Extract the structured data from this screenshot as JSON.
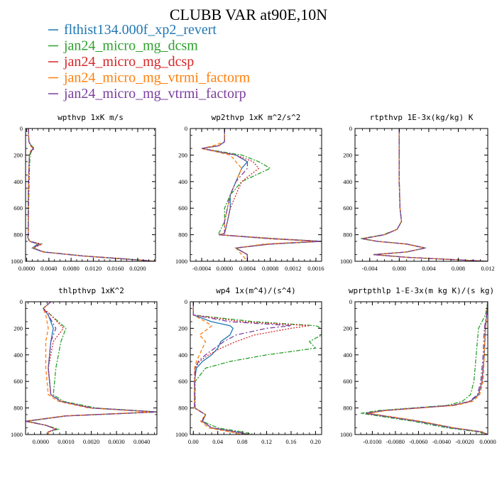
{
  "title": "CLUBB VAR at90E,10N",
  "legend": [
    {
      "label": "flthist134.000f_xp2_revert",
      "color": "#1f77b4"
    },
    {
      "label": "jan24_micro_mg_dcsm",
      "color": "#2ca02c"
    },
    {
      "label": "jan24_micro_mg_dcsp",
      "color": "#d62728"
    },
    {
      "label": "jan24_micro_mg_vtrmi_factorm",
      "color": "#ff7f0e"
    },
    {
      "label": "jan24_micro_mg_vtrmi_factorp",
      "color": "#7b3f9e"
    }
  ],
  "chart_data": [
    {
      "type": "line",
      "title": "wpthvp 1xK m/s",
      "xlim": [
        -0.0002,
        0.0232
      ],
      "xticks": [
        "0.0000",
        "0.0040",
        "0.0080",
        "0.0120",
        "0.0160",
        "0.0200"
      ],
      "xtick_values": [
        0,
        0.004,
        0.008,
        0.012,
        0.016,
        0.02
      ],
      "ylim": [
        1000,
        0
      ],
      "yticks": [
        "0",
        "200",
        "400",
        "600",
        "800",
        "1000"
      ],
      "ytick_values": [
        0,
        200,
        400,
        600,
        800,
        1000
      ],
      "y": [
        0,
        100,
        130,
        150,
        170,
        200,
        300,
        500,
        700,
        800,
        820,
        850,
        870,
        900,
        930,
        960,
        990,
        1000
      ],
      "series": [
        {
          "values": [
            0.0003,
            0.0004,
            0.0008,
            0.0012,
            0.0008,
            0.0005,
            0.0004,
            0.0003,
            0.0003,
            0.0003,
            0.0002,
            0.0005,
            0.002,
            0.001,
            0.003,
            0.01,
            0.02,
            0.0232
          ]
        },
        {
          "values": [
            0.0003,
            0.0004,
            0.0009,
            0.0014,
            0.0009,
            0.0006,
            0.0005,
            0.0004,
            0.0003,
            0.0003,
            0.0002,
            0.0006,
            0.0025,
            0.0012,
            0.0032,
            0.0105,
            0.0205,
            0.0232
          ]
        },
        {
          "values": [
            0.0003,
            0.0004,
            0.0008,
            0.0013,
            0.0008,
            0.0005,
            0.0004,
            0.0003,
            0.0003,
            0.0003,
            0.0002,
            0.0006,
            0.0028,
            0.0012,
            0.0031,
            0.0102,
            0.0202,
            0.0232
          ]
        },
        {
          "values": [
            0.0003,
            0.0004,
            0.0007,
            0.0011,
            0.0007,
            0.0005,
            0.0004,
            0.0003,
            0.0003,
            0.0003,
            0.0002,
            0.0005,
            0.0022,
            0.0011,
            0.003,
            0.01,
            0.02,
            0.0232
          ]
        },
        {
          "values": [
            0.0003,
            0.0004,
            0.0008,
            0.0012,
            0.0008,
            0.0005,
            0.0004,
            0.0003,
            0.0003,
            0.0003,
            0.0002,
            0.0005,
            0.0024,
            0.0011,
            0.003,
            0.0101,
            0.0201,
            0.0232
          ]
        }
      ]
    },
    {
      "type": "line",
      "title": "wp2thvp 1xK m^2/s^2",
      "xlim": [
        -0.0006,
        0.0017
      ],
      "xticks": [
        "-0.0004",
        "0.0000",
        "0.0004",
        "0.0008",
        "0.0012",
        "0.0016"
      ],
      "xtick_values": [
        -0.0004,
        0,
        0.0004,
        0.0008,
        0.0012,
        0.0016
      ],
      "ylim": [
        1000,
        0
      ],
      "yticks": [
        "0",
        "200",
        "400",
        "600",
        "800",
        "1000"
      ],
      "ytick_values": [
        0,
        200,
        400,
        600,
        800,
        1000
      ],
      "y": [
        0,
        100,
        130,
        150,
        200,
        250,
        300,
        400,
        500,
        600,
        700,
        790,
        800,
        830,
        850,
        870,
        900,
        950,
        1000
      ],
      "series": [
        {
          "values": [
            0.0,
            0.0,
            -0.0001,
            -0.0004,
            0.0002,
            0.0004,
            0.0003,
            0.0002,
            0.0001,
            0.0001,
            5e-05,
            0.0,
            -0.0001,
            0.0008,
            0.0017,
            0.0008,
            0.0002,
            0.0004,
            0.0004
          ]
        },
        {
          "values": [
            0.0,
            0.0,
            -0.0001,
            -0.0004,
            0.0003,
            0.0006,
            0.0008,
            0.0003,
            0.0001,
            0.0,
            0.0,
            -0.0001,
            -0.0001,
            0.0009,
            0.0017,
            0.0008,
            0.0002,
            0.0004,
            0.0004
          ]
        },
        {
          "values": [
            0.0,
            0.0,
            -0.0001,
            -0.0004,
            0.0002,
            0.0005,
            0.0006,
            0.0003,
            0.0002,
            0.0001,
            5e-05,
            0.0,
            -0.0001,
            0.0009,
            0.0017,
            0.0008,
            0.0002,
            0.0004,
            0.0004
          ]
        },
        {
          "values": [
            0.0,
            0.0,
            -0.0002,
            -0.0004,
            0.0001,
            0.0002,
            0.0003,
            0.0002,
            0.0001,
            5e-05,
            0.0,
            0.0,
            -0.0001,
            0.0008,
            0.0016,
            0.0007,
            0.0002,
            0.0003,
            0.0004
          ]
        },
        {
          "values": [
            0.0,
            0.0,
            -0.0001,
            -0.0004,
            0.0002,
            0.0004,
            0.0004,
            0.0002,
            0.0001,
            5e-05,
            0.0,
            0.0,
            -0.0001,
            0.0008,
            0.0017,
            0.0008,
            0.0002,
            0.0004,
            0.0004
          ]
        }
      ]
    },
    {
      "type": "line",
      "title": "rtpthvp 1E-3x(kg/kg) K",
      "xlim": [
        -0.006,
        0.012
      ],
      "xticks": [
        "-0.004",
        "0.000",
        "0.004",
        "0.008",
        "0.012"
      ],
      "xtick_values": [
        -0.004,
        0,
        0.004,
        0.008,
        0.012
      ],
      "ylim": [
        1000,
        0
      ],
      "yticks": [
        "0",
        "200",
        "400",
        "600",
        "800",
        "1000"
      ],
      "ytick_values": [
        0,
        200,
        400,
        600,
        800,
        1000
      ],
      "y": [
        0,
        200,
        400,
        600,
        700,
        760,
        800,
        830,
        850,
        870,
        900,
        930,
        950,
        970,
        1000
      ],
      "series": [
        {
          "values": [
            0.0,
            0.0,
            0.0,
            0.0001,
            0.0003,
            -0.0003,
            -0.002,
            -0.005,
            -0.003,
            0.001,
            0.0035,
            0.001,
            -0.0035,
            0.001,
            0.012
          ]
        },
        {
          "values": [
            0.0,
            0.0,
            0.0,
            0.0001,
            0.0003,
            -0.0003,
            -0.0022,
            -0.0052,
            -0.003,
            0.001,
            0.0035,
            0.001,
            -0.0035,
            0.001,
            0.012
          ]
        },
        {
          "values": [
            0.0,
            0.0,
            0.0,
            0.0001,
            0.0003,
            -0.0003,
            -0.002,
            -0.005,
            -0.003,
            0.001,
            0.0036,
            0.001,
            -0.0035,
            0.001,
            0.012
          ]
        },
        {
          "values": [
            0.0,
            0.0,
            0.0,
            0.0001,
            0.0003,
            -0.0003,
            -0.0021,
            -0.0048,
            -0.003,
            0.0008,
            0.0034,
            0.001,
            -0.0034,
            0.001,
            0.012
          ]
        },
        {
          "values": [
            0.0,
            0.0,
            0.0,
            0.0001,
            0.0003,
            -0.0003,
            -0.002,
            -0.005,
            -0.003,
            0.001,
            0.0035,
            0.001,
            -0.0035,
            0.001,
            0.012
          ]
        }
      ]
    },
    {
      "type": "line",
      "title": "thlpthvp 1xK^2",
      "xlim": [
        -0.0006,
        0.0046
      ],
      "xticks": [
        "0.0000",
        "0.0010",
        "0.0020",
        "0.0030",
        "0.0040"
      ],
      "xtick_values": [
        0,
        0.001,
        0.002,
        0.003,
        0.004
      ],
      "ylim": [
        1000,
        0
      ],
      "yticks": [
        "0",
        "200",
        "400",
        "600",
        "800",
        "1000"
      ],
      "ytick_values": [
        0,
        200,
        400,
        600,
        800,
        1000
      ],
      "y": [
        0,
        50,
        100,
        200,
        300,
        500,
        700,
        750,
        800,
        830,
        860,
        900,
        930,
        960,
        980,
        1000
      ],
      "series": [
        {
          "values": [
            0.0004,
            0.0001,
            0.0003,
            0.0005,
            0.0004,
            0.0003,
            0.0004,
            0.0008,
            0.002,
            0.0046,
            0.001,
            -0.0006,
            0.0002,
            0.0006,
            0.0003,
            0.0003
          ]
        },
        {
          "values": [
            0.0004,
            0.0001,
            0.0004,
            0.001,
            0.0008,
            0.0006,
            0.0005,
            0.0009,
            0.0022,
            0.0046,
            0.001,
            -0.0005,
            0.0002,
            0.0007,
            0.0003,
            0.0003
          ]
        },
        {
          "values": [
            0.0004,
            0.0001,
            0.0004,
            0.0009,
            0.0005,
            0.0003,
            0.0004,
            0.0008,
            0.002,
            0.0046,
            0.001,
            -0.0006,
            0.0002,
            0.0006,
            0.0003,
            0.0003
          ]
        },
        {
          "values": [
            0.0004,
            0.0001,
            0.0002,
            0.0003,
            0.0002,
            0.0002,
            0.0003,
            0.0007,
            0.0019,
            0.0044,
            0.0009,
            -0.0006,
            0.0002,
            0.0006,
            0.0003,
            0.0003
          ]
        },
        {
          "values": [
            0.0004,
            0.0001,
            0.0003,
            0.0006,
            0.0004,
            0.0003,
            0.0004,
            0.0008,
            0.002,
            0.0046,
            0.001,
            -0.0006,
            0.0002,
            0.0006,
            0.0003,
            0.0003
          ]
        }
      ]
    },
    {
      "type": "line",
      "title": "wp4 1x(m^4)/(s^4)",
      "xlim": [
        -0.005,
        0.21
      ],
      "xticks": [
        "0.00",
        "0.04",
        "0.08",
        "0.12",
        "0.16",
        "0.20"
      ],
      "xtick_values": [
        0,
        0.04,
        0.08,
        0.12,
        0.16,
        0.2
      ],
      "ylim": [
        1000,
        0
      ],
      "yticks": [
        "0",
        "200",
        "400",
        "600",
        "800",
        "1000"
      ],
      "ytick_values": [
        0,
        200,
        400,
        600,
        800,
        1000
      ],
      "y": [
        0,
        100,
        150,
        180,
        200,
        250,
        300,
        350,
        400,
        450,
        500,
        600,
        800,
        850,
        900,
        950,
        980,
        1000
      ],
      "series": [
        {
          "values": [
            0.0,
            0.0,
            0.03,
            0.06,
            0.065,
            0.06,
            0.045,
            0.04,
            0.03,
            0.015,
            0.005,
            0.002,
            0.002,
            0.02,
            0.015,
            0.03,
            0.07,
            0.09
          ]
        },
        {
          "values": [
            0.0,
            0.0,
            0.1,
            0.2,
            0.21,
            0.21,
            0.19,
            0.2,
            0.12,
            0.06,
            0.02,
            0.003,
            0.003,
            0.02,
            0.015,
            0.04,
            0.08,
            0.1
          ]
        },
        {
          "values": [
            0.0,
            0.0,
            0.08,
            0.19,
            0.16,
            0.1,
            0.07,
            0.045,
            0.025,
            0.01,
            0.003,
            0.002,
            0.002,
            0.02,
            0.015,
            0.03,
            0.07,
            0.09
          ]
        },
        {
          "values": [
            0.0,
            0.0,
            0.02,
            0.03,
            0.025,
            0.01,
            0.02,
            0.015,
            0.01,
            0.005,
            0.002,
            0.002,
            0.002,
            0.02,
            0.012,
            0.025,
            0.06,
            0.08
          ]
        },
        {
          "values": [
            0.0,
            0.0,
            0.06,
            0.16,
            0.12,
            0.07,
            0.05,
            0.035,
            0.02,
            0.008,
            0.003,
            0.002,
            0.002,
            0.02,
            0.014,
            0.03,
            0.07,
            0.09
          ]
        }
      ]
    },
    {
      "type": "line",
      "title": "wprtpthlp 1-E-3x(m kg K)/(s kg)",
      "xlim": [
        -0.0115,
        0.0
      ],
      "xticks": [
        "-0.0100",
        "-0.0080",
        "-0.0060",
        "-0.0040",
        "-0.0020",
        "0.0000"
      ],
      "xtick_values": [
        -0.01,
        -0.008,
        -0.006,
        -0.004,
        -0.002,
        0
      ],
      "ylim": [
        1000,
        0
      ],
      "yticks": [
        "0",
        "200",
        "400",
        "600",
        "800",
        "1000"
      ],
      "ytick_values": [
        0,
        200,
        400,
        600,
        800,
        1000
      ],
      "y": [
        0,
        100,
        200,
        400,
        600,
        700,
        750,
        780,
        800,
        820,
        840,
        860,
        900,
        950,
        980,
        1000
      ],
      "series": [
        {
          "values": [
            0.0,
            -0.0001,
            -0.0002,
            -0.0003,
            -0.0005,
            -0.0008,
            -0.0015,
            -0.003,
            -0.006,
            -0.009,
            -0.0105,
            -0.009,
            -0.006,
            -0.003,
            -0.0005,
            0.0
          ]
        },
        {
          "values": [
            0.0,
            -0.0002,
            -0.0008,
            -0.001,
            -0.0012,
            -0.0015,
            -0.0022,
            -0.0035,
            -0.0065,
            -0.0095,
            -0.011,
            -0.0095,
            -0.0065,
            -0.0035,
            -0.0008,
            0.0
          ]
        },
        {
          "values": [
            0.0,
            -0.0001,
            -0.0002,
            -0.0003,
            -0.0005,
            -0.0008,
            -0.0015,
            -0.003,
            -0.006,
            -0.009,
            -0.0105,
            -0.009,
            -0.006,
            -0.003,
            -0.0005,
            0.0
          ]
        },
        {
          "values": [
            0.0,
            -0.0001,
            -0.0002,
            -0.0003,
            -0.0004,
            -0.0007,
            -0.0013,
            -0.0028,
            -0.0058,
            -0.0088,
            -0.0103,
            -0.0088,
            -0.0058,
            -0.0029,
            -0.0005,
            0.0
          ]
        },
        {
          "values": [
            0.0,
            -0.0001,
            -0.0003,
            -0.0004,
            -0.0006,
            -0.0009,
            -0.0016,
            -0.0031,
            -0.0061,
            -0.0091,
            -0.0106,
            -0.0091,
            -0.0061,
            -0.0031,
            -0.0006,
            0.0
          ]
        }
      ]
    }
  ]
}
